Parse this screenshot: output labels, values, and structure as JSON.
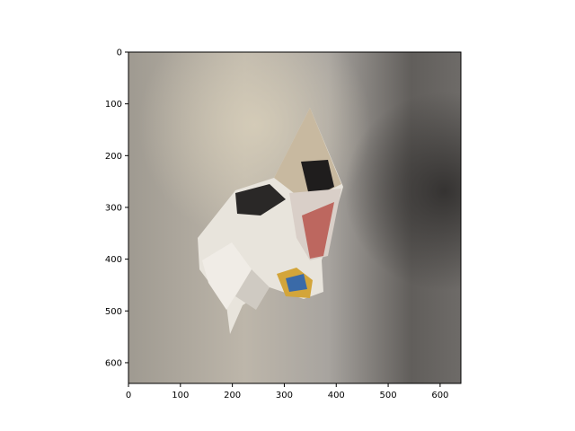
{
  "figure": {
    "image_subject": "crumpled paper on wall",
    "axis_color": "#000000",
    "wall_color": "#b3aea8",
    "shadow_color": "#4a4745"
  },
  "x_axis": {
    "ticks": [
      0,
      100,
      200,
      300,
      400,
      500,
      600
    ],
    "labels": [
      "0",
      "100",
      "200",
      "300",
      "400",
      "500",
      "600"
    ],
    "range": [
      0,
      640
    ]
  },
  "y_axis": {
    "ticks": [
      0,
      100,
      200,
      300,
      400,
      500,
      600
    ],
    "labels": [
      "0",
      "100",
      "200",
      "300",
      "400",
      "500",
      "600"
    ],
    "range": [
      0,
      640
    ],
    "inverted": true
  }
}
